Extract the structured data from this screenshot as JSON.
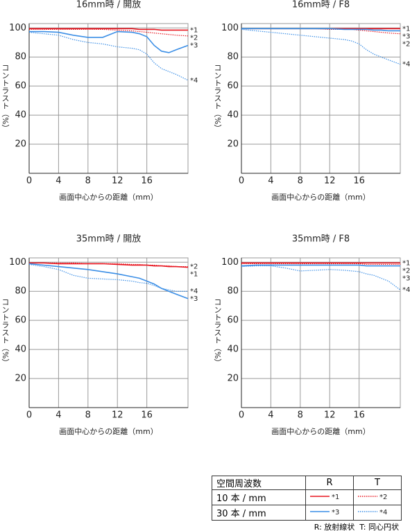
{
  "chart_data": [
    {
      "type": "line",
      "title": "16mm時 / 開放",
      "xlabel": "画面中心からの距離（mm）",
      "ylabel": "コントラスト（%）",
      "xlim": [
        0,
        21.6
      ],
      "ylim": [
        0,
        103
      ],
      "xticks": [
        0,
        4,
        8,
        12,
        16
      ],
      "yticks": [
        20,
        40,
        60,
        80,
        100
      ],
      "grid": true,
      "x": [
        0,
        2,
        4,
        6,
        8,
        10,
        12,
        14,
        15,
        16,
        17,
        18,
        19,
        20,
        21.6
      ],
      "series": [
        {
          "name": "*1",
          "color": "#e8141e",
          "style": "solid",
          "values": [
            99.5,
            99.5,
            99.5,
            99.5,
            99.5,
            99.5,
            99.5,
            99.5,
            99,
            99,
            99,
            98.5,
            98.5,
            98.5,
            98.5
          ]
        },
        {
          "name": "*2",
          "color": "#e8141e",
          "style": "dotted",
          "values": [
            99,
            99,
            99,
            99,
            99,
            99,
            98.5,
            98,
            97.5,
            97,
            96.5,
            96,
            95.5,
            95,
            94.5
          ]
        },
        {
          "name": "*3",
          "color": "#3a8ee6",
          "style": "solid",
          "values": [
            97.5,
            97.5,
            97,
            95,
            93.5,
            93.5,
            97.5,
            97,
            96,
            94,
            88,
            84,
            83,
            85,
            88
          ]
        },
        {
          "name": "*4",
          "color": "#3a8ee6",
          "style": "dotted",
          "values": [
            97,
            96,
            95,
            92,
            90,
            89,
            87,
            86,
            85,
            82,
            76,
            72,
            70,
            68,
            64
          ]
        }
      ]
    },
    {
      "type": "line",
      "title": "16mm時 / F8",
      "xlabel": "画面中心からの距離（mm）",
      "ylabel": "コントラスト（%）",
      "xlim": [
        0,
        21.6
      ],
      "ylim": [
        0,
        103
      ],
      "xticks": [
        0,
        4,
        8,
        12,
        16
      ],
      "yticks": [
        20,
        40,
        60,
        80,
        100
      ],
      "grid": true,
      "x": [
        0,
        2,
        4,
        6,
        8,
        10,
        12,
        14,
        15,
        16,
        17,
        18,
        19,
        20,
        21.6
      ],
      "series": [
        {
          "name": "*1",
          "color": "#e8141e",
          "style": "solid",
          "values": [
            99.5,
            99.5,
            99.5,
            99.5,
            99.5,
            99.5,
            99.5,
            99.5,
            99.5,
            99.5,
            99.5,
            99.5,
            99.5,
            99.5,
            99.5
          ]
        },
        {
          "name": "*2",
          "color": "#e8141e",
          "style": "dotted",
          "values": [
            99.5,
            99.5,
            99.5,
            99.5,
            99.5,
            99.5,
            99,
            99,
            99,
            98.5,
            98,
            97.5,
            97,
            96.5,
            96
          ]
        },
        {
          "name": "*3",
          "color": "#3a8ee6",
          "style": "solid",
          "values": [
            99.5,
            99.5,
            99.5,
            99.5,
            99.5,
            99.5,
            99.5,
            99,
            99,
            99,
            99,
            98.5,
            98.5,
            98,
            98
          ]
        },
        {
          "name": "*4",
          "color": "#3a8ee6",
          "style": "dotted",
          "values": [
            99,
            98,
            97,
            96,
            95,
            94,
            93,
            92,
            91,
            89,
            85,
            82,
            80,
            78,
            75
          ]
        }
      ]
    },
    {
      "type": "line",
      "title": "35mm時 / 開放",
      "xlabel": "画面中心からの距離（mm）",
      "ylabel": "コントラスト（%）",
      "xlim": [
        0,
        21.6
      ],
      "ylim": [
        0,
        103
      ],
      "xticks": [
        0,
        4,
        8,
        12,
        16
      ],
      "yticks": [
        20,
        40,
        60,
        80,
        100
      ],
      "grid": true,
      "x": [
        0,
        2,
        4,
        6,
        8,
        10,
        12,
        14,
        15,
        16,
        17,
        18,
        19,
        20,
        21.6
      ],
      "series": [
        {
          "name": "*1",
          "color": "#e8141e",
          "style": "solid",
          "values": [
            99.5,
            99.5,
            99,
            99,
            99,
            99,
            98.5,
            98,
            98,
            98,
            97.5,
            97.5,
            97,
            97,
            96.5
          ]
        },
        {
          "name": "*2",
          "color": "#e8141e",
          "style": "dotted",
          "values": [
            99.5,
            99.5,
            99.5,
            99.5,
            99,
            99,
            99,
            98.5,
            98.5,
            98,
            98,
            97.5,
            97.5,
            97,
            97
          ]
        },
        {
          "name": "*3",
          "color": "#3a8ee6",
          "style": "solid",
          "values": [
            99,
            98,
            97,
            96,
            95,
            93.5,
            92,
            90,
            89,
            87,
            85,
            82,
            80,
            78,
            75
          ]
        },
        {
          "name": "*4",
          "color": "#3a8ee6",
          "style": "dotted",
          "values": [
            98.5,
            97,
            95,
            91,
            89,
            88.5,
            88,
            87,
            86,
            85.5,
            84,
            82,
            81,
            80,
            80
          ]
        }
      ]
    },
    {
      "type": "line",
      "title": "35mm時 / F8",
      "xlabel": "画面中心からの距離（mm）",
      "ylabel": "コントラスト（%）",
      "xlim": [
        0,
        21.6
      ],
      "ylim": [
        0,
        103
      ],
      "xticks": [
        0,
        4,
        8,
        12,
        16
      ],
      "yticks": [
        20,
        40,
        60,
        80,
        100
      ],
      "grid": true,
      "x": [
        0,
        2,
        4,
        6,
        8,
        10,
        12,
        14,
        15,
        16,
        17,
        18,
        19,
        20,
        21.6
      ],
      "series": [
        {
          "name": "*1",
          "color": "#e8141e",
          "style": "solid",
          "values": [
            99.5,
            99.5,
            99.5,
            99.5,
            99.5,
            99.5,
            99.5,
            99.5,
            99.5,
            99.5,
            99.5,
            99.5,
            99.5,
            99.5,
            99.5
          ]
        },
        {
          "name": "*2",
          "color": "#e8141e",
          "style": "dotted",
          "values": [
            99,
            99,
            99,
            99,
            99,
            99,
            99,
            99,
            99,
            99,
            98.5,
            98.5,
            98.5,
            98.5,
            98.5
          ]
        },
        {
          "name": "*3",
          "color": "#3a8ee6",
          "style": "solid",
          "values": [
            97.5,
            98,
            98,
            98,
            98,
            98,
            98,
            98,
            98,
            98,
            97.5,
            97.5,
            97.5,
            97.5,
            97.5
          ]
        },
        {
          "name": "*4",
          "color": "#3a8ee6",
          "style": "dotted",
          "values": [
            97,
            97.5,
            97.5,
            96,
            94,
            94.5,
            95,
            94.5,
            94,
            93.5,
            92,
            91,
            89,
            87,
            81
          ]
        }
      ]
    }
  ],
  "legend": {
    "header": [
      "空間周波数",
      "R",
      "T"
    ],
    "rows": [
      "10 本 / mm",
      "30 本 / mm"
    ]
  },
  "footnote": "R: 放射線状  T: 同心円状"
}
